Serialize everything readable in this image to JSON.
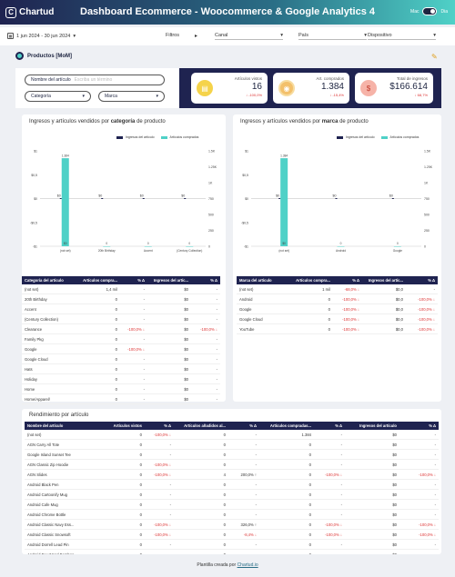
{
  "header": {
    "logo_text": "Chartud",
    "title": "Dashboard Ecommerce - Woocommerce & Google Analytics 4",
    "mode_left": "Mac",
    "mode_right": "Dia"
  },
  "filters": {
    "date_range": "1 jun 2024 - 30 jun 2024",
    "label": "Filtros",
    "canal": "Canal",
    "pais": "País",
    "dispositivo": "Dispositivo"
  },
  "section": {
    "title": "Productos [MoM]"
  },
  "controls": {
    "article_label": "Nombre del artículo",
    "article_placeholder": "Escriba un término",
    "category": "Categoría",
    "brand": "Marca"
  },
  "kpis": [
    {
      "label": "Artículos vistos",
      "value": "16",
      "delta": "↓ -100,0%"
    },
    {
      "label": "Art. comprados",
      "value": "1.384",
      "delta": "↓ -15,4%"
    },
    {
      "label": "Total de ingresos",
      "value": "$166.614",
      "delta": "↓ 68,7%"
    }
  ],
  "colors": {
    "dark": "#1f2350",
    "teal": "#4fd1c7",
    "red": "#d33333"
  },
  "chart_left": {
    "title_pre": "Ingresos y artículos vendidos por ",
    "title_bold": "categoría",
    "title_post": " de producto",
    "legend": [
      "Ingresos del artículo",
      "Artículos comprados"
    ]
  },
  "chart_right": {
    "title_pre": "Ingresos y artículos vendidos por ",
    "title_bold": "marca",
    "title_post": " de producto",
    "legend": [
      "Ingresos del artículo",
      "Artículos comprados"
    ]
  },
  "chart_data": [
    {
      "type": "bar",
      "categories": [
        "(not set)",
        "20th Birthday",
        "Accent",
        "(Century Collection)"
      ],
      "series": [
        {
          "name": "Ingresos del artículo",
          "values": [
            0,
            0,
            0,
            0
          ]
        },
        {
          "name": "Artículos comprados",
          "values": [
            1384,
            0,
            0,
            0
          ]
        }
      ],
      "data_labels_top": [
        "$0",
        "$0",
        "$0",
        "$0"
      ],
      "bar_top_label": "1.384",
      "bar_bottom_labels": [
        "$0",
        "0",
        "0",
        "0"
      ],
      "y_left_ticks": [
        "$1",
        "$0,5",
        "$0",
        "-$0,5",
        "-$1"
      ],
      "y_right_ticks": [
        "1.5K",
        "1.25K",
        "1K",
        "750",
        "500",
        "250",
        "0"
      ],
      "ylim_right": [
        0,
        1500
      ]
    },
    {
      "type": "bar",
      "categories": [
        "(not set)",
        "Android",
        "Google"
      ],
      "series": [
        {
          "name": "Ingresos del artículo",
          "values": [
            0,
            0,
            0
          ]
        },
        {
          "name": "Artículos comprados",
          "values": [
            1384,
            0,
            0
          ]
        }
      ],
      "data_labels_top": [
        "$0",
        "$0",
        "$0"
      ],
      "bar_top_label": "1.384",
      "bar_bottom_labels": [
        "$0",
        "0",
        "0"
      ],
      "y_left_ticks": [
        "$1",
        "$0,5",
        "$0",
        "-$0,5",
        "-$1"
      ],
      "y_right_ticks": [
        "1.5K",
        "1.25K",
        "1K",
        "750",
        "500",
        "250",
        "0"
      ],
      "ylim_right": [
        0,
        1500
      ]
    }
  ],
  "table_cat": {
    "headers": [
      "Categoría del artículo",
      "Artículos compra...",
      "% Δ",
      "Ingresos del artíc...",
      "% Δ"
    ],
    "rows": [
      [
        "(not set)",
        "1,4 mil",
        "-",
        "$0",
        "-"
      ],
      [
        "20th Birthday",
        "0",
        "-",
        "$0",
        "-"
      ],
      [
        "Accent",
        "0",
        "-",
        "$0",
        "-"
      ],
      [
        "(Century Collection)",
        "0",
        "-",
        "$0",
        "-"
      ],
      [
        "Clearance",
        "0",
        "-100,0% ↓",
        "$0",
        "-100,0% ↓"
      ],
      [
        "Family Pkg",
        "0",
        "-",
        "$0",
        "-"
      ],
      [
        "Google",
        "0",
        "-100,0% ↓",
        "$0",
        "-"
      ],
      [
        "Google Cloud",
        "0",
        "-",
        "$0",
        "-"
      ],
      [
        "Hats",
        "0",
        "-",
        "$0",
        "-"
      ],
      [
        "Holiday",
        "0",
        "-",
        "$0",
        "-"
      ],
      [
        "Home",
        "0",
        "-",
        "$0",
        "-"
      ],
      [
        "Home/Apparel/",
        "0",
        "-",
        "$0",
        "-"
      ]
    ]
  },
  "table_brand": {
    "headers": [
      "Marca del artículo",
      "Artículos compra...",
      "% Δ",
      "Ingresos del artíc...",
      "% Δ"
    ],
    "rows": [
      [
        "(not set)",
        "1 mil",
        "-68,0% ↓",
        "$0,0",
        "-"
      ],
      [
        "Android",
        "0",
        "-100,0% ↓",
        "$0,0",
        "-100,0% ↓"
      ],
      [
        "Google",
        "0",
        "-100,0% ↓",
        "$0,0",
        "-100,0% ↓"
      ],
      [
        "Google Cloud",
        "0",
        "-100,0% ↓",
        "$0,0",
        "-100,0% ↓"
      ],
      [
        "YouTube",
        "0",
        "-100,0% ↓",
        "$0,0",
        "-100,0% ↓"
      ]
    ]
  },
  "table_article": {
    "title": "Rendimiento por artículo",
    "headers": [
      "Nombre del artículo",
      "Artículos vistos",
      "% Δ",
      "Artículos añadidos al...",
      "% Δ",
      "Artículos compradas...",
      "% Δ",
      "Ingresos del artículo",
      "% Δ"
    ],
    "rows": [
      [
        "(not set)",
        "0",
        "-100,0% ↓",
        "0",
        "-",
        "1.384",
        "-",
        "$0",
        "-"
      ],
      [
        "AGN Carry All Tote",
        "0",
        "-",
        "0",
        "-",
        "0",
        "-",
        "$0",
        "-"
      ],
      [
        "Google Island Sunset Tee",
        "0",
        "-",
        "0",
        "-",
        "0",
        "-",
        "$0",
        "-"
      ],
      [
        "AGN Classic Zip Hoodie",
        "0",
        "-100,0% ↓",
        "0",
        "-",
        "0",
        "-",
        "$0",
        "-"
      ],
      [
        "AGN Slides",
        "0",
        "-100,0% ↓",
        "4",
        "200,0% ↑",
        "0",
        "-100,0% ↓",
        "$0",
        "-100,0% ↓"
      ],
      [
        "Android Black Pen",
        "0",
        "-",
        "0",
        "-",
        "0",
        "-",
        "$0",
        "-"
      ],
      [
        "Android Cartoonify Mug",
        "0",
        "-",
        "0",
        "-",
        "0",
        "-",
        "$0",
        "-"
      ],
      [
        "Android Cafe Mug",
        "0",
        "-",
        "0",
        "-",
        "0",
        "-",
        "$0",
        "-"
      ],
      [
        "Android Chrome Bottle",
        "0",
        "-",
        "0",
        "-",
        "0",
        "-",
        "$0",
        "-"
      ],
      [
        "Android Classic Navy Ess...",
        "0",
        "-100,0% ↓",
        "0",
        "326,0% ↑",
        "0",
        "-100,0% ↓",
        "$0",
        "-100,0% ↓"
      ],
      [
        "Android Classic Snowsoft",
        "0",
        "-100,0% ↓",
        "0",
        "-8,4% ↓",
        "0",
        "-100,0% ↓",
        "$0",
        "-100,0% ↓"
      ],
      [
        "Android Dorrell Lead Pin",
        "0",
        "-",
        "0",
        "-",
        "0",
        "-",
        "$0",
        "-"
      ],
      [
        "Android Exx Wood Bamboo",
        "0",
        "-",
        "0",
        "-",
        "0",
        "-",
        "$0",
        "-"
      ]
    ]
  },
  "footer": {
    "text": "Plantilla creada por ",
    "link": "Chartud.io"
  }
}
